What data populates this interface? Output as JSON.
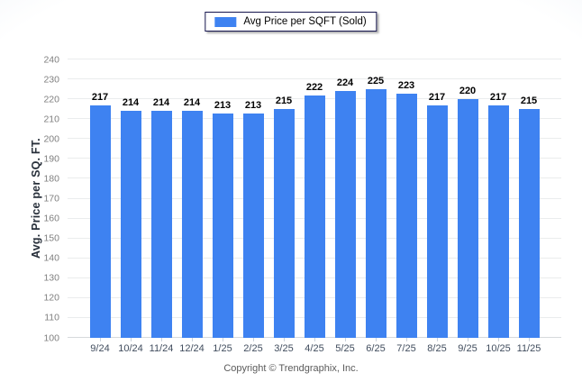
{
  "chart_data": {
    "type": "bar",
    "legend": {
      "label": "Avg Price per SQFT (Sold)",
      "position": "top-center"
    },
    "categories": [
      "9/24",
      "10/24",
      "11/24",
      "12/24",
      "1/25",
      "2/25",
      "3/25",
      "4/25",
      "5/25",
      "6/25",
      "7/25",
      "8/25",
      "9/25",
      "10/25",
      "11/25"
    ],
    "values": [
      217,
      214,
      214,
      214,
      213,
      213,
      215,
      222,
      224,
      225,
      223,
      217,
      220,
      217,
      215
    ],
    "ylabel": "Avg. Price per SQ. FT.",
    "xlabel": "",
    "ylim": [
      100,
      240
    ],
    "ytick_step": 10,
    "grid": "horizontal",
    "bar_color": "#3e82f1",
    "gridline_color": "#eaeced",
    "footer": "Copyright © Trendgraphix, Inc."
  }
}
